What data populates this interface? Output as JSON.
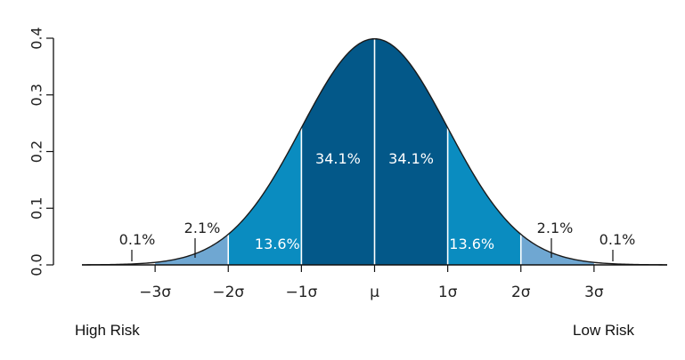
{
  "chart_data": {
    "type": "area",
    "title": "",
    "xlabel": "",
    "ylabel": "",
    "ylim": [
      0,
      0.4
    ],
    "xlim": [
      -4,
      4
    ],
    "yticks": [
      "0.0",
      "0.1",
      "0.2",
      "0.3",
      "0.4"
    ],
    "xticks": [
      {
        "value": -3,
        "label": "−3σ"
      },
      {
        "value": -2,
        "label": "−2σ"
      },
      {
        "value": -1,
        "label": "−1σ"
      },
      {
        "value": 0,
        "label": "μ"
      },
      {
        "value": 1,
        "label": "1σ"
      },
      {
        "value": 2,
        "label": "2σ"
      },
      {
        "value": 3,
        "label": "3σ"
      }
    ],
    "curve": "normal pdf, mean 0, sd 1",
    "regions": [
      {
        "from": -4,
        "to": -3,
        "percent": "0.1%",
        "color": "#ffffff"
      },
      {
        "from": -3,
        "to": -2,
        "percent": "2.1%",
        "color": "#6fa7d2"
      },
      {
        "from": -2,
        "to": -1,
        "percent": "13.6%",
        "color": "#0a8cc0"
      },
      {
        "from": -1,
        "to": 0,
        "percent": "34.1%",
        "color": "#035889"
      },
      {
        "from": 0,
        "to": 1,
        "percent": "34.1%",
        "color": "#035889"
      },
      {
        "from": 1,
        "to": 2,
        "percent": "13.6%",
        "color": "#0a8cc0"
      },
      {
        "from": 2,
        "to": 3,
        "percent": "2.1%",
        "color": "#6fa7d2"
      },
      {
        "from": 3,
        "to": 4,
        "percent": "0.1%",
        "color": "#ffffff"
      }
    ],
    "grid": false,
    "legend": "none"
  },
  "annotations": {
    "left": "High Risk",
    "right": "Low Risk"
  }
}
